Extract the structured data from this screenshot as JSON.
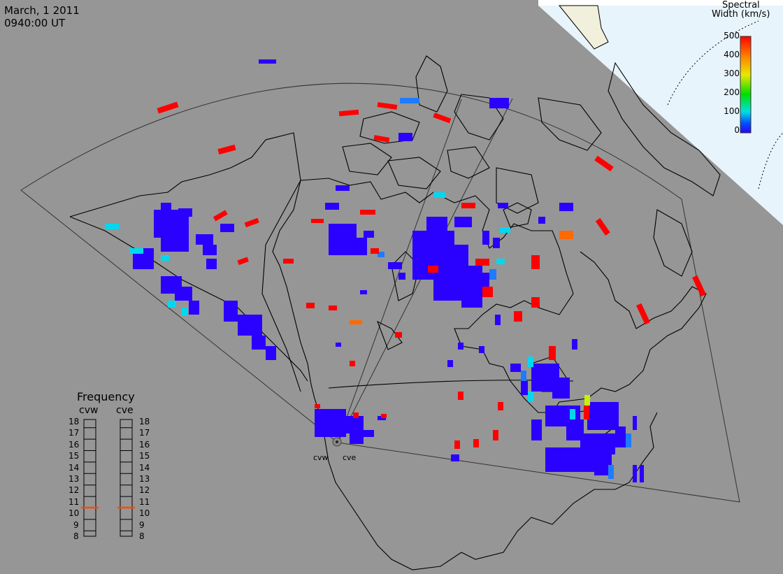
{
  "title": {
    "date": "March, 1 2011",
    "time": "0940:00 UT"
  },
  "colorbar": {
    "title_line1": "Spectral",
    "title_line2": "Width (km/s)",
    "ticks": [
      "500",
      "400",
      "300",
      "200",
      "100",
      "0"
    ],
    "gradient_colors": [
      "#ff0000",
      "#ff8800",
      "#e8e800",
      "#00dd00",
      "#00e0e0",
      "#0050ff",
      "#2a00ff"
    ]
  },
  "frequency": {
    "title": "Frequency",
    "stations": [
      {
        "name": "cvw",
        "value_mhz": 10.8
      },
      {
        "name": "cve",
        "value_mhz": 10.8
      }
    ],
    "ticks": [
      "18",
      "17",
      "16",
      "15",
      "14",
      "13",
      "12",
      "11",
      "10",
      "9",
      "8"
    ]
  },
  "radars": [
    {
      "name": "cvw"
    },
    {
      "name": "cve"
    }
  ],
  "colors": {
    "ocean": "#969696",
    "land_border": "#000000",
    "polar_bg": "#e8f4fb",
    "echo_low": "#2a00ff",
    "echo_high": "#ff0000",
    "freq_marker": "#ff4a00"
  }
}
